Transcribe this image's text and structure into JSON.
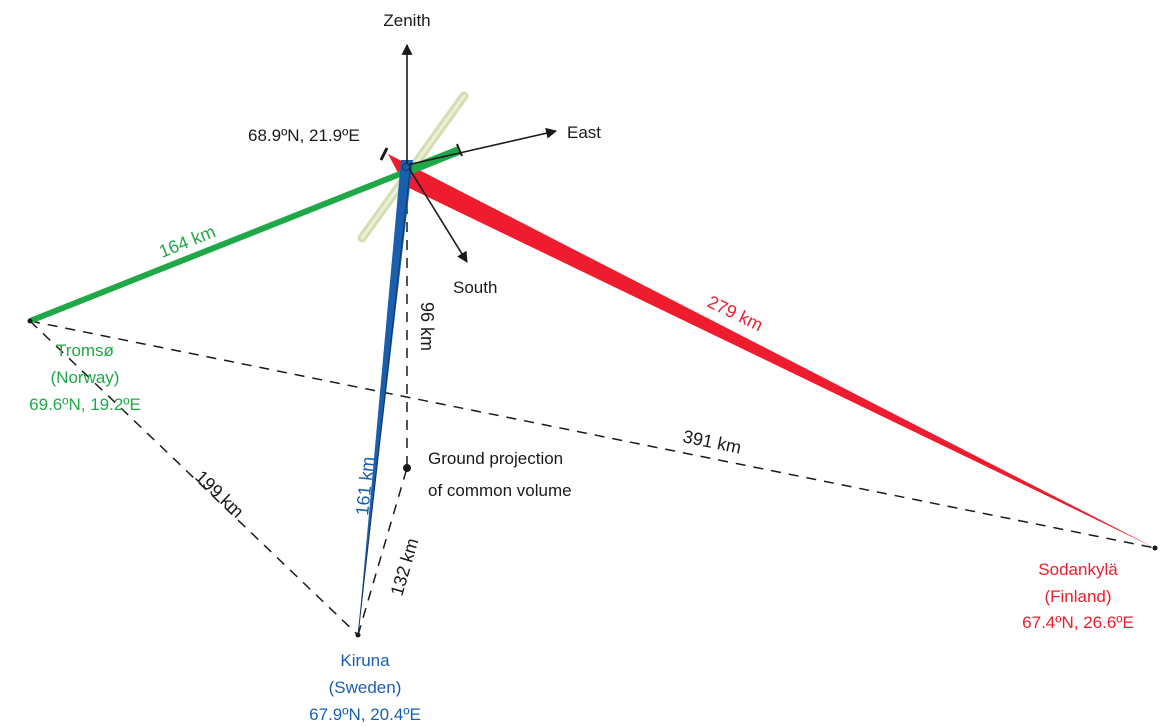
{
  "colors": {
    "tromso": "#1fa848",
    "sodankyla": "#ee1c2e",
    "kiruna": "#1a5fae",
    "text": "#1a1a1a"
  },
  "axes": {
    "zenith": "Zenith",
    "east": "East",
    "south": "South"
  },
  "target": {
    "coords": "68.9ºN, 21.9ºE"
  },
  "stations": {
    "tromso": {
      "name": "Tromsø",
      "country": "(Norway)",
      "coords": "69.6ºN, 19.2ºE"
    },
    "kiruna": {
      "name": "Kiruna",
      "country": "(Sweden)",
      "coords": "67.9ºN, 20.4ºE"
    },
    "sodankyla": {
      "name": "Sodankylä",
      "country": "(Finland)",
      "coords": "67.4ºN, 26.6ºE"
    }
  },
  "distances": {
    "tromso_target": "164 km",
    "sodankyla_target": "279 km",
    "kiruna_target": "161 km",
    "altitude": "96 km",
    "tromso_sodankyla": "391 km",
    "tromso_kiruna": "199 km",
    "kiruna_ground": "132 km"
  },
  "ground_projection": {
    "line1": "Ground projection",
    "line2": "of common volume"
  }
}
